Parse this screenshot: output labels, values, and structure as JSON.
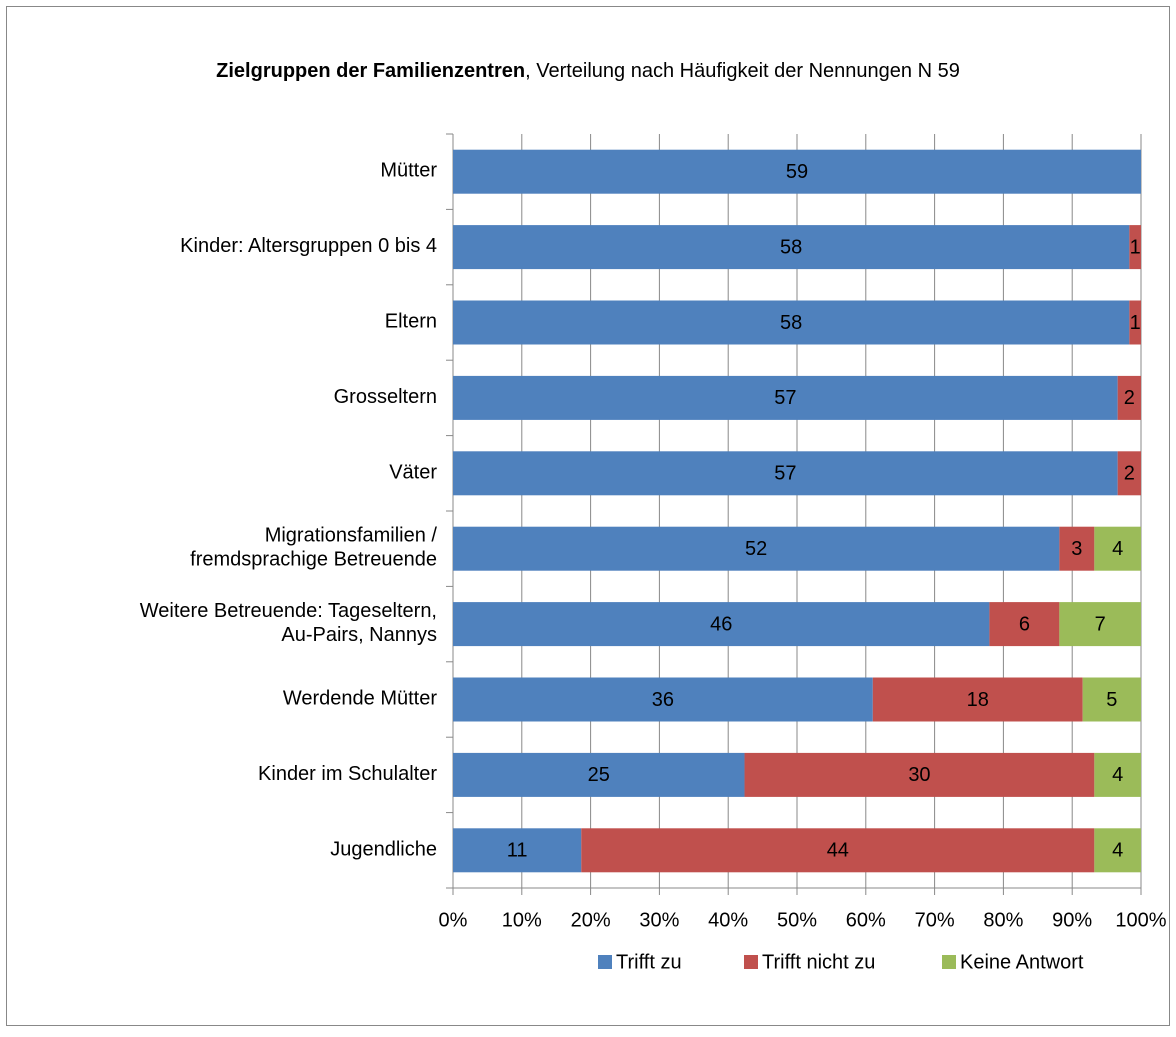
{
  "chart_data": {
    "type": "bar",
    "orientation": "horizontal",
    "stacked": "percent",
    "title": "Zielgruppen der Familienzentren",
    "subtitle": ", Verteilung nach Häufigkeit der Nennungen N 59",
    "categories": [
      [
        "Mütter"
      ],
      [
        "Kinder: Altersgruppen 0 bis 4"
      ],
      [
        "Eltern"
      ],
      [
        "Grosseltern"
      ],
      [
        "Väter"
      ],
      [
        "Migrationsfamilien /",
        "fremdsprachige Betreuende"
      ],
      [
        "Weitere Betreuende: Tageseltern,",
        "Au-Pairs, Nannys"
      ],
      [
        "Werdende Mütter"
      ],
      [
        "Kinder im Schulalter"
      ],
      [
        "Jugendliche"
      ]
    ],
    "series": [
      {
        "name": "Trifft zu",
        "color": "#4f81bd",
        "values": [
          59,
          58,
          58,
          57,
          57,
          52,
          46,
          36,
          25,
          11
        ]
      },
      {
        "name": "Trifft nicht zu",
        "color": "#c0504d",
        "values": [
          null,
          1,
          1,
          2,
          2,
          3,
          6,
          18,
          30,
          44
        ]
      },
      {
        "name": "Keine Antwort",
        "color": "#9bbb59",
        "values": [
          null,
          null,
          null,
          null,
          null,
          4,
          7,
          5,
          4,
          4
        ]
      }
    ],
    "xlim": [
      0,
      100
    ],
    "xticks": [
      {
        "value": 0,
        "label": "0%"
      },
      {
        "value": 10,
        "label": "10%"
      },
      {
        "value": 20,
        "label": "20%"
      },
      {
        "value": 30,
        "label": "30%"
      },
      {
        "value": 40,
        "label": "40%"
      },
      {
        "value": 50,
        "label": "50%"
      },
      {
        "value": 60,
        "label": "60%"
      },
      {
        "value": 70,
        "label": "70%"
      },
      {
        "value": 80,
        "label": "80%"
      },
      {
        "value": 90,
        "label": "90%"
      },
      {
        "value": 100,
        "label": "100%"
      }
    ],
    "grid": true,
    "legend": "bottom"
  }
}
